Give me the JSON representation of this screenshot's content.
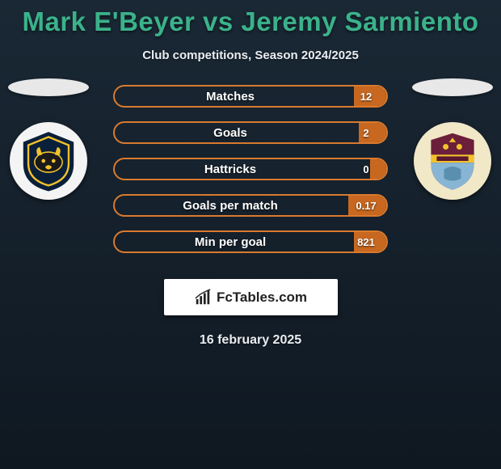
{
  "title_color": "#3bb28a",
  "player1_name": "Mark E'Beyer",
  "vs_text": "vs",
  "player2_name": "Jeremy Sarmiento",
  "subtitle": "Club competitions, Season 2024/2025",
  "accent_color": "#d97a2e",
  "bar_border_color": "#d97a2e",
  "bar_fill_color": "#c86820",
  "stats": [
    {
      "label": "Matches",
      "right_value": "12",
      "fill_pct": 12
    },
    {
      "label": "Goals",
      "right_value": "2",
      "fill_pct": 10
    },
    {
      "label": "Hattricks",
      "right_value": "0",
      "fill_pct": 6
    },
    {
      "label": "Goals per match",
      "right_value": "0.17",
      "fill_pct": 14
    },
    {
      "label": "Min per goal",
      "right_value": "821",
      "fill_pct": 12
    }
  ],
  "brand": "FcTables.com",
  "date": "16 february 2025",
  "crest_left": {
    "name": "oxford-united",
    "bg": "#f4f4f4",
    "shield": "#0a1f3a",
    "accent": "#f3c22b"
  },
  "crest_right": {
    "name": "burnley",
    "bg": "#f1e8c8",
    "shield_top": "#6b1f3a",
    "shield_bottom": "#88b5d4",
    "bar": "#f3c22b"
  }
}
